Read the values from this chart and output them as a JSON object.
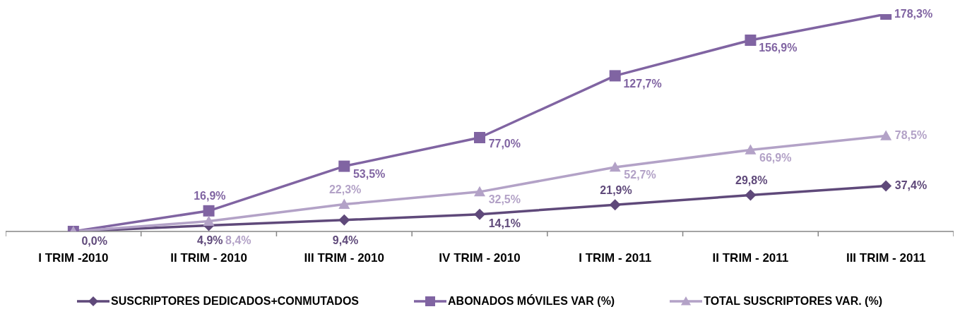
{
  "chart_data": {
    "type": "line",
    "categories": [
      "I TRIM -2010",
      "II TRIM - 2010",
      "III TRIM - 2010",
      "IV TRIM - 2010",
      "I TRIM - 2011",
      "II TRIM - 2011",
      "III TRIM - 2011"
    ],
    "series": [
      {
        "name": "SUSCRIPTORES DEDICADOS+CONMUTADOS",
        "color": "#5f497a",
        "marker": "diamond",
        "values": [
          0,
          4.9,
          9.4,
          14.1,
          21.9,
          29.8,
          37.4
        ],
        "value_labels": [
          "0,0%",
          "4,9%",
          "9,4%",
          "14,1%",
          "21,9%",
          "29,8%",
          "37,4%"
        ]
      },
      {
        "name": "ABONADOS MÓVILES VAR (%)",
        "color": "#8064a2",
        "marker": "square",
        "values": [
          0,
          16.9,
          53.5,
          77.0,
          127.7,
          156.9,
          178.3
        ],
        "value_labels": [
          null,
          "16,9%",
          "53,5%",
          "77,0%",
          "127,7%",
          "156,9%",
          "178,3%"
        ]
      },
      {
        "name": "TOTAL SUSCRIPTORES VAR. (%)",
        "color": "#b3a2c7",
        "marker": "triangle",
        "values": [
          0,
          8.4,
          22.3,
          32.5,
          52.7,
          66.9,
          78.5
        ],
        "value_labels": [
          null,
          "8,4%",
          "22,3%",
          "32,5%",
          "52,7%",
          "66,9%",
          "78,5%"
        ]
      }
    ],
    "tick_labels": "x",
    "grid": false,
    "legend": "bottom",
    "line_style": "solid"
  }
}
